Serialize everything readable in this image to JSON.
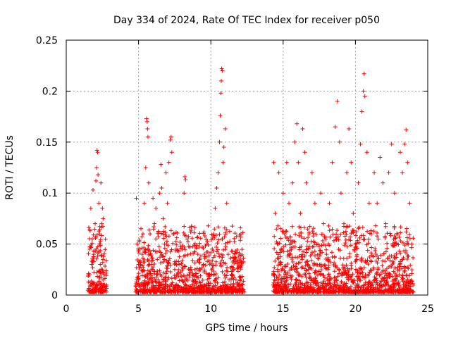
{
  "chart_data": {
    "type": "scatter",
    "title": "Day 334 of 2024, Rate Of TEC Index for receiver p050",
    "xlabel": "GPS time / hours",
    "ylabel": "ROTI / TECUs",
    "xlim": [
      0,
      25
    ],
    "ylim": [
      0,
      0.25
    ],
    "xticks": [
      {
        "value": 0,
        "label": "0"
      },
      {
        "value": 5,
        "label": "5"
      },
      {
        "value": 10,
        "label": "10"
      },
      {
        "value": 15,
        "label": "15"
      },
      {
        "value": 20,
        "label": "20"
      },
      {
        "value": 25,
        "label": "25"
      }
    ],
    "yticks": [
      {
        "value": 0,
        "label": "0"
      },
      {
        "value": 0.05,
        "label": "0.05"
      },
      {
        "value": 0.1,
        "label": "0.1"
      },
      {
        "value": 0.15,
        "label": "0.15"
      },
      {
        "value": 0.2,
        "label": "0.2"
      },
      {
        "value": 0.25,
        "label": "0.25"
      }
    ],
    "grid": true,
    "marker": "plus",
    "color": "#ff0000",
    "segments": [
      {
        "start": 1.5,
        "end": 2.8
      },
      {
        "start": 4.8,
        "end": 12.3
      },
      {
        "start": 14.3,
        "end": 24.0
      }
    ],
    "points": [
      [
        1.55,
        0.005
      ],
      [
        1.6,
        0.02
      ],
      [
        1.62,
        0.045
      ],
      [
        1.65,
        0.063
      ],
      [
        1.7,
        0.085
      ],
      [
        1.75,
        0.03
      ],
      [
        1.8,
        0.055
      ],
      [
        1.85,
        0.103
      ],
      [
        1.9,
        0.04
      ],
      [
        1.95,
        0.012
      ],
      [
        2.0,
        0.07
      ],
      [
        2.05,
        0.112
      ],
      [
        2.1,
        0.125
      ],
      [
        2.13,
        0.142
      ],
      [
        2.17,
        0.14
      ],
      [
        2.2,
        0.118
      ],
      [
        2.25,
        0.09
      ],
      [
        2.3,
        0.06
      ],
      [
        2.35,
        0.03
      ],
      [
        2.4,
        0.11
      ],
      [
        2.45,
        0.07
      ],
      [
        2.5,
        0.085
      ],
      [
        2.55,
        0.075
      ],
      [
        2.6,
        0.02
      ],
      [
        2.65,
        0.01
      ],
      [
        2.7,
        0.005
      ],
      [
        4.85,
        0.095
      ],
      [
        4.9,
        0.05
      ],
      [
        5.0,
        0.03
      ],
      [
        5.1,
        0.008
      ],
      [
        5.25,
        0.04
      ],
      [
        5.4,
        0.09
      ],
      [
        5.5,
        0.125
      ],
      [
        5.55,
        0.173
      ],
      [
        5.6,
        0.17
      ],
      [
        5.62,
        0.163
      ],
      [
        5.65,
        0.155
      ],
      [
        5.7,
        0.11
      ],
      [
        5.8,
        0.06
      ],
      [
        5.9,
        0.03
      ],
      [
        6.0,
        0.095
      ],
      [
        6.1,
        0.07
      ],
      [
        6.2,
        0.085
      ],
      [
        6.3,
        0.035
      ],
      [
        6.45,
        0.1
      ],
      [
        6.55,
        0.128
      ],
      [
        6.6,
        0.105
      ],
      [
        6.7,
        0.075
      ],
      [
        6.8,
        0.05
      ],
      [
        6.9,
        0.12
      ],
      [
        7.0,
        0.09
      ],
      [
        7.1,
        0.13
      ],
      [
        7.2,
        0.152
      ],
      [
        7.25,
        0.155
      ],
      [
        7.3,
        0.14
      ],
      [
        7.4,
        0.06
      ],
      [
        7.5,
        0.025
      ],
      [
        7.6,
        0.045
      ],
      [
        7.8,
        0.03
      ],
      [
        8.0,
        0.015
      ],
      [
        8.15,
        0.1
      ],
      [
        8.2,
        0.116
      ],
      [
        8.25,
        0.113
      ],
      [
        8.35,
        0.055
      ],
      [
        8.5,
        0.02
      ],
      [
        8.7,
        0.01
      ],
      [
        8.9,
        0.025
      ],
      [
        9.1,
        0.04
      ],
      [
        9.3,
        0.012
      ],
      [
        9.5,
        0.03
      ],
      [
        9.7,
        0.05
      ],
      [
        9.9,
        0.02
      ],
      [
        10.1,
        0.045
      ],
      [
        10.2,
        0.06
      ],
      [
        10.3,
        0.085
      ],
      [
        10.4,
        0.105
      ],
      [
        10.5,
        0.12
      ],
      [
        10.6,
        0.15
      ],
      [
        10.65,
        0.176
      ],
      [
        10.7,
        0.198
      ],
      [
        10.72,
        0.21
      ],
      [
        10.75,
        0.222
      ],
      [
        10.8,
        0.22
      ],
      [
        10.85,
        0.13
      ],
      [
        10.9,
        0.145
      ],
      [
        11.0,
        0.163
      ],
      [
        11.1,
        0.09
      ],
      [
        11.2,
        0.04
      ],
      [
        11.4,
        0.015
      ],
      [
        11.6,
        0.025
      ],
      [
        11.8,
        0.008
      ],
      [
        12.0,
        0.032
      ],
      [
        12.2,
        0.01
      ],
      [
        14.35,
        0.13
      ],
      [
        14.45,
        0.08
      ],
      [
        14.6,
        0.05
      ],
      [
        14.7,
        0.12
      ],
      [
        14.85,
        0.03
      ],
      [
        15.0,
        0.1
      ],
      [
        15.1,
        0.06
      ],
      [
        15.25,
        0.13
      ],
      [
        15.4,
        0.09
      ],
      [
        15.5,
        0.04
      ],
      [
        15.65,
        0.11
      ],
      [
        15.8,
        0.15
      ],
      [
        15.95,
        0.168
      ],
      [
        16.05,
        0.13
      ],
      [
        16.2,
        0.08
      ],
      [
        16.35,
        0.163
      ],
      [
        16.5,
        0.14
      ],
      [
        16.6,
        0.11
      ],
      [
        16.8,
        0.06
      ],
      [
        17.0,
        0.12
      ],
      [
        17.2,
        0.09
      ],
      [
        17.4,
        0.05
      ],
      [
        17.6,
        0.1
      ],
      [
        17.8,
        0.07
      ],
      [
        18.0,
        0.04
      ],
      [
        18.2,
        0.09
      ],
      [
        18.4,
        0.13
      ],
      [
        18.6,
        0.165
      ],
      [
        18.75,
        0.19
      ],
      [
        18.9,
        0.15
      ],
      [
        19.0,
        0.1
      ],
      [
        19.2,
        0.07
      ],
      [
        19.4,
        0.12
      ],
      [
        19.55,
        0.163
      ],
      [
        19.7,
        0.13
      ],
      [
        19.85,
        0.08
      ],
      [
        20.0,
        0.05
      ],
      [
        20.2,
        0.11
      ],
      [
        20.35,
        0.148
      ],
      [
        20.45,
        0.18
      ],
      [
        20.55,
        0.2
      ],
      [
        20.6,
        0.217
      ],
      [
        20.65,
        0.195
      ],
      [
        20.8,
        0.14
      ],
      [
        20.95,
        0.09
      ],
      [
        21.1,
        0.06
      ],
      [
        21.3,
        0.12
      ],
      [
        21.5,
        0.09
      ],
      [
        21.7,
        0.135
      ],
      [
        21.9,
        0.11
      ],
      [
        22.1,
        0.07
      ],
      [
        22.3,
        0.12
      ],
      [
        22.5,
        0.148
      ],
      [
        22.7,
        0.1
      ],
      [
        22.9,
        0.06
      ],
      [
        23.1,
        0.14
      ],
      [
        23.25,
        0.12
      ],
      [
        23.4,
        0.148
      ],
      [
        23.5,
        0.162
      ],
      [
        23.6,
        0.13
      ],
      [
        23.75,
        0.09
      ],
      [
        23.9,
        0.05
      ]
    ]
  }
}
